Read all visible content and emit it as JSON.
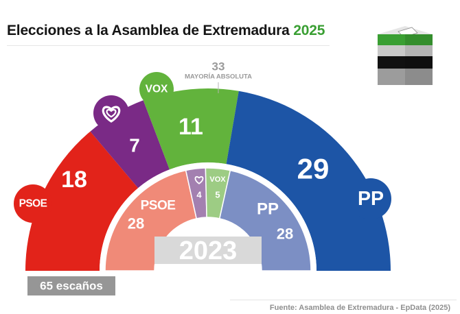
{
  "title": {
    "text": "Elecciones a la Asamblea de Extremadura",
    "year": "2025"
  },
  "source": "Fuente: Asamblea de Extremadura - EpData (2025)",
  "chart_data": {
    "type": "parliament-semicircle",
    "total_seats_label": "65 escaños",
    "total_seats": 65,
    "majority": {
      "value": "33",
      "label": "MAYORÍA ABSOLUTA"
    },
    "inner_label": "2023",
    "series": [
      {
        "name": "2025",
        "parties": [
          {
            "party": "PSOE",
            "seats": 18,
            "color": "#e2231a",
            "logo": "PSOE"
          },
          {
            "party": "Podemos",
            "seats": 7,
            "color": "#7a2a86",
            "logo": "heart-icon"
          },
          {
            "party": "VOX",
            "seats": 11,
            "color": "#62b33c",
            "logo": "VOX"
          },
          {
            "party": "PP",
            "seats": 29,
            "color": "#1d55a6",
            "logo": "PP"
          }
        ]
      },
      {
        "name": "2023",
        "parties": [
          {
            "party": "PSOE",
            "seats": 28,
            "color": "#f08a78",
            "logo": "PSOE"
          },
          {
            "party": "Podemos",
            "seats": 4,
            "color": "#a380b0",
            "logo": "heart-icon"
          },
          {
            "party": "VOX",
            "seats": 5,
            "color": "#9dcc84",
            "logo": "VOX"
          },
          {
            "party": "PP",
            "seats": 28,
            "color": "#7c8fc4",
            "logo": "PP"
          }
        ]
      }
    ]
  },
  "ballot_icon": {
    "name": "ballot-box-icon",
    "colors": [
      "#3a9f33",
      "#ffffff",
      "#111111",
      "#c9c9c9",
      "#9c9c9c"
    ]
  }
}
